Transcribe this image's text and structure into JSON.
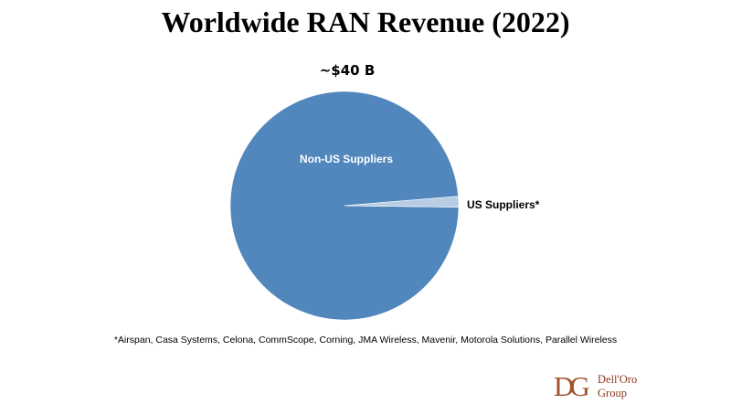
{
  "title": "Worldwide RAN Revenue (2022)",
  "total_label": "~$40 B",
  "chart_data": {
    "type": "pie",
    "title": "Worldwide RAN Revenue (2022)",
    "slices": [
      {
        "name": "Non-US Suppliers",
        "percent": 98.5,
        "color": "#5187bd",
        "label_color": "#ffffff"
      },
      {
        "name": "US Suppliers*",
        "percent": 1.5,
        "color": "#b8cce4",
        "label_color": "#000000"
      }
    ]
  },
  "footnote": "*Airspan, Casa Systems, Celona, CommScope, Corning, JMA Wireless, Mavenir, Motorola Solutions, Parallel Wireless",
  "logo": {
    "mark": "DG",
    "line1": "Dell'Oro",
    "line2": "Group"
  }
}
